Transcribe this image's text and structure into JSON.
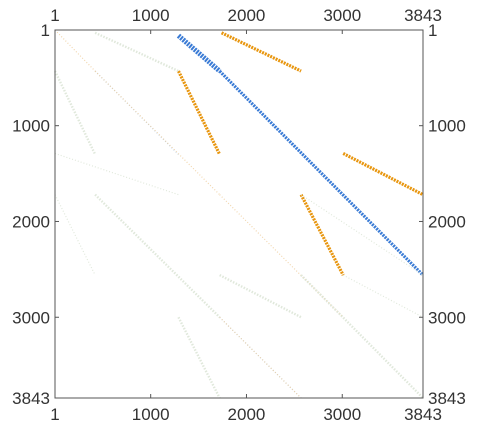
{
  "chart_data": {
    "type": "scatter",
    "title": "",
    "xlabel": "",
    "ylabel": "",
    "xlim": [
      1,
      3843
    ],
    "ylim": [
      1,
      3843
    ],
    "y_inverted": true,
    "grid": false,
    "legend": "none",
    "x_ticks": [
      {
        "value": 1,
        "label": "1"
      },
      {
        "value": 1000,
        "label": "1000"
      },
      {
        "value": 2000,
        "label": "2000"
      },
      {
        "value": 3000,
        "label": "3000"
      },
      {
        "value": 3843,
        "label": "3843"
      }
    ],
    "y_ticks": [
      {
        "value": 1,
        "label": "1"
      },
      {
        "value": 1000,
        "label": "1000"
      },
      {
        "value": 2000,
        "label": "2000"
      },
      {
        "value": 3000,
        "label": "3000"
      },
      {
        "value": 3843,
        "label": "3843"
      }
    ],
    "series": [
      {
        "color": "#3a7bd5",
        "segments": [
          {
            "x0": 1290,
            "y0": 60,
            "x1": 1720,
            "y1": 430,
            "weight": 4
          },
          {
            "x0": 1720,
            "y0": 430,
            "x1": 3843,
            "y1": 2560,
            "weight": 3
          }
        ]
      },
      {
        "color": "#e8960f",
        "segments": [
          {
            "x0": 1740,
            "y0": 30,
            "x1": 2570,
            "y1": 430,
            "weight": 3
          },
          {
            "x0": 1290,
            "y0": 430,
            "x1": 1720,
            "y1": 1300,
            "weight": 3
          },
          {
            "x0": 3010,
            "y0": 1290,
            "x1": 3843,
            "y1": 1720,
            "weight": 3
          },
          {
            "x0": 2570,
            "y0": 1720,
            "x1": 3010,
            "y1": 2560,
            "weight": 3
          }
        ]
      },
      {
        "color": "#a8c8ea",
        "segments": [
          {
            "x0": 420,
            "y0": 430,
            "x1": 1290,
            "y1": 1300,
            "weight": 1
          },
          {
            "x0": 1720,
            "y0": 3000,
            "x1": 2570,
            "y1": 3843,
            "weight": 1
          }
        ]
      },
      {
        "color": "#f0d2a6",
        "segments": [
          {
            "x0": 1,
            "y0": 1,
            "x1": 420,
            "y1": 430,
            "weight": 1
          },
          {
            "x0": 420,
            "y0": 430,
            "x1": 1720,
            "y1": 1720,
            "weight": 1
          },
          {
            "x0": 1720,
            "y0": 1720,
            "x1": 3010,
            "y1": 3000,
            "weight": 1
          },
          {
            "x0": 1720,
            "y0": 3000,
            "x1": 2570,
            "y1": 3843,
            "weight": 1
          }
        ]
      },
      {
        "color": "#dde6d8",
        "segments": [
          {
            "x0": 420,
            "y0": 30,
            "x1": 1290,
            "y1": 430,
            "weight": 2
          },
          {
            "x0": 1,
            "y0": 430,
            "x1": 420,
            "y1": 1300,
            "weight": 2
          },
          {
            "x0": 1,
            "y0": 1290,
            "x1": 1290,
            "y1": 1720,
            "weight": 1
          },
          {
            "x0": 420,
            "y0": 1720,
            "x1": 1720,
            "y1": 3000,
            "weight": 2
          },
          {
            "x0": 1,
            "y0": 1720,
            "x1": 420,
            "y1": 2560,
            "weight": 1
          },
          {
            "x0": 1720,
            "y0": 2560,
            "x1": 2570,
            "y1": 3000,
            "weight": 2
          },
          {
            "x0": 2570,
            "y0": 2560,
            "x1": 3843,
            "y1": 3843,
            "weight": 2
          },
          {
            "x0": 3010,
            "y0": 2560,
            "x1": 3843,
            "y1": 3000,
            "weight": 1
          },
          {
            "x0": 1290,
            "y0": 3000,
            "x1": 1720,
            "y1": 3843,
            "weight": 2
          },
          {
            "x0": 2570,
            "y0": 1720,
            "x1": 3843,
            "y1": 2560,
            "weight": 1
          }
        ]
      }
    ]
  }
}
